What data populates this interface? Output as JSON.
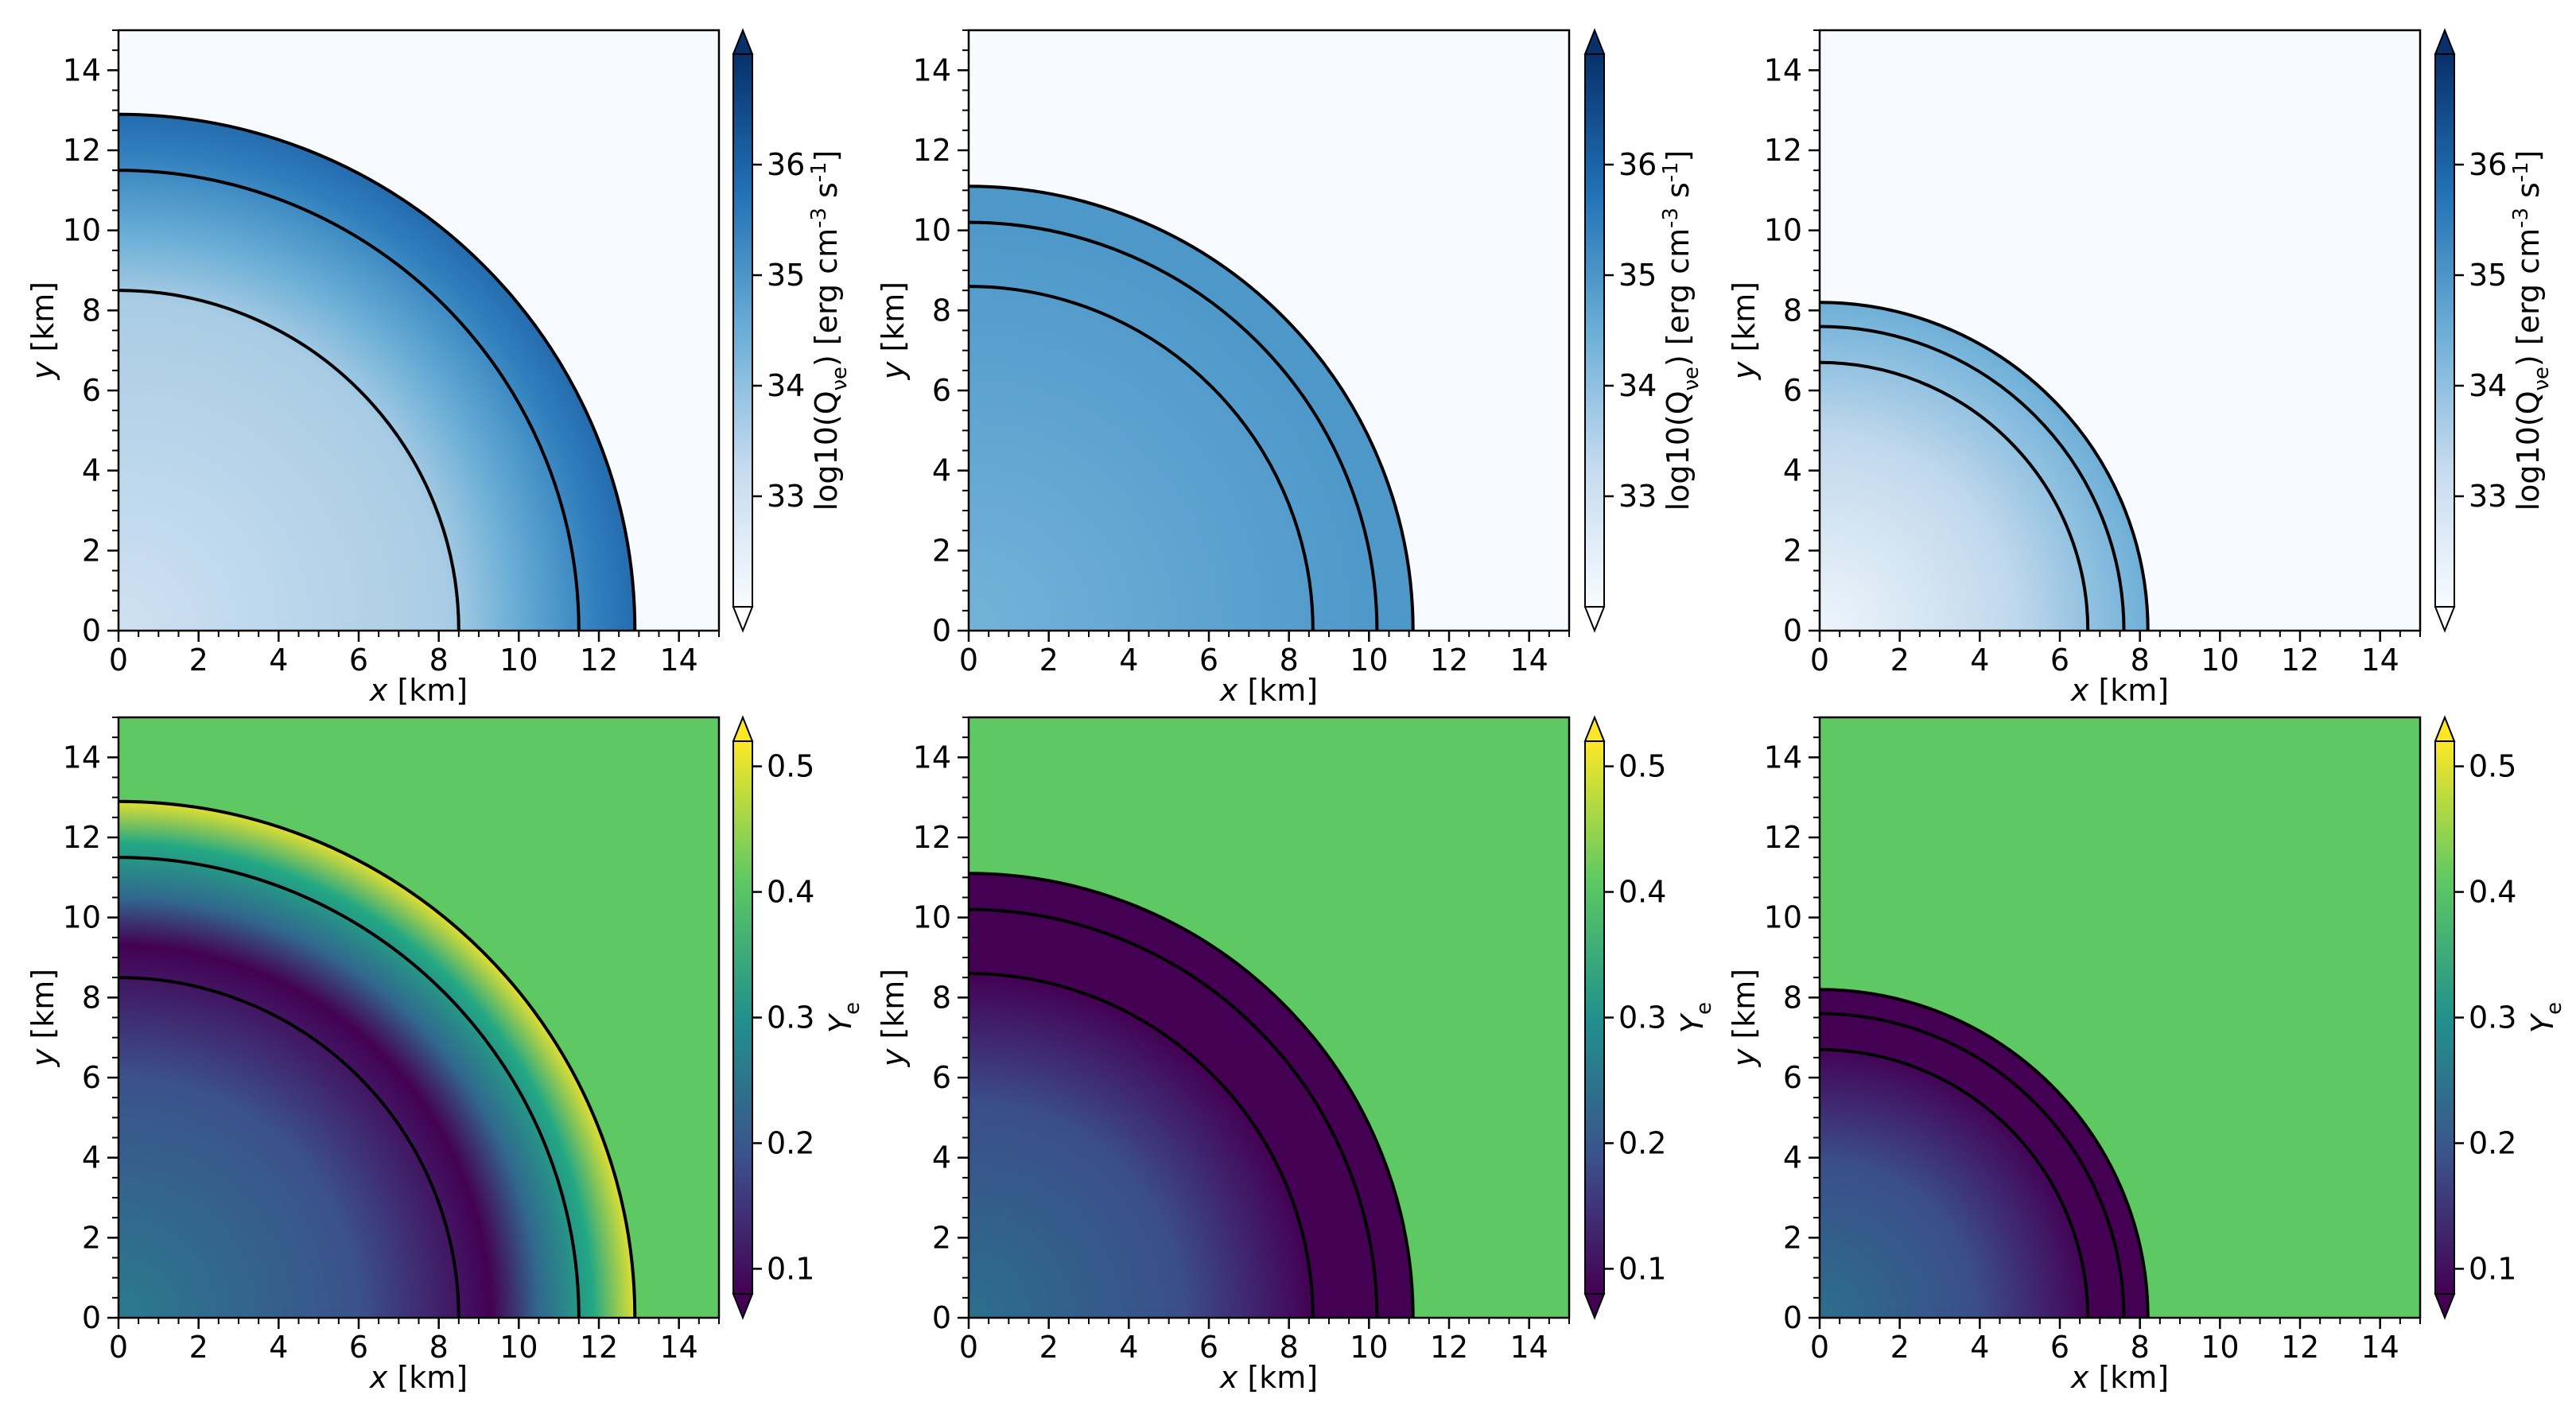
{
  "chart_data": [
    {
      "type": "heatmap",
      "panel": "top-left",
      "quantity": "emission",
      "xlabel": "x [km]",
      "ylabel": "y [km]",
      "xlim": [
        0,
        15
      ],
      "ylim": [
        0,
        15
      ],
      "xticks": [
        0,
        2,
        4,
        6,
        8,
        10,
        12,
        14
      ],
      "yticks": [
        0,
        2,
        4,
        6,
        8,
        10,
        12,
        14
      ],
      "contour_radii_km": [
        8.5,
        11.5,
        12.9
      ],
      "outer_radius_km": 12.9,
      "colormap": "Blues",
      "colorbar": {
        "label": "log10(Q_νe) [erg cm^-3 s^-1]",
        "ticks": [
          33,
          34,
          35,
          36
        ],
        "range": [
          32,
          37
        ],
        "extend": "both"
      }
    },
    {
      "type": "heatmap",
      "panel": "top-middle",
      "quantity": "emission",
      "xlabel": "x [km]",
      "ylabel": "y [km]",
      "xlim": [
        0,
        15
      ],
      "ylim": [
        0,
        15
      ],
      "xticks": [
        0,
        2,
        4,
        6,
        8,
        10,
        12,
        14
      ],
      "yticks": [
        0,
        2,
        4,
        6,
        8,
        10,
        12,
        14
      ],
      "contour_radii_km": [
        8.6,
        10.2,
        11.1
      ],
      "outer_radius_km": 11.1,
      "colormap": "Blues",
      "colorbar": {
        "label": "log10(Q_νe) [erg cm^-3 s^-1]",
        "ticks": [
          33,
          34,
          35,
          36
        ],
        "range": [
          32,
          37
        ],
        "extend": "both"
      }
    },
    {
      "type": "heatmap",
      "panel": "top-right",
      "quantity": "emission",
      "xlabel": "x [km]",
      "ylabel": "y [km]",
      "xlim": [
        0,
        15
      ],
      "ylim": [
        0,
        15
      ],
      "xticks": [
        0,
        2,
        4,
        6,
        8,
        10,
        12,
        14
      ],
      "yticks": [
        0,
        2,
        4,
        6,
        8,
        10,
        12,
        14
      ],
      "contour_radii_km": [
        6.7,
        7.6,
        8.2
      ],
      "outer_radius_km": 8.2,
      "colormap": "Blues",
      "colorbar": {
        "label": "log10(Q_νe) [erg cm^-3 s^-1]",
        "ticks": [
          33,
          34,
          35,
          36
        ],
        "range": [
          32,
          37
        ],
        "extend": "both"
      }
    },
    {
      "type": "heatmap",
      "panel": "bottom-left",
      "quantity": "ye",
      "xlabel": "x [km]",
      "ylabel": "y [km]",
      "xlim": [
        0,
        15
      ],
      "ylim": [
        0,
        15
      ],
      "xticks": [
        0,
        2,
        4,
        6,
        8,
        10,
        12,
        14
      ],
      "yticks": [
        0,
        2,
        4,
        6,
        8,
        10,
        12,
        14
      ],
      "contour_radii_km": [
        8.5,
        11.5,
        12.9
      ],
      "outer_radius_km": 12.9,
      "colormap": "viridis",
      "colorbar": {
        "label": "Y_e",
        "ticks": [
          0.1,
          0.2,
          0.3,
          0.4,
          0.5
        ],
        "range": [
          0.08,
          0.52
        ],
        "extend": "both"
      }
    },
    {
      "type": "heatmap",
      "panel": "bottom-middle",
      "quantity": "ye",
      "xlabel": "x [km]",
      "ylabel": "y [km]",
      "xlim": [
        0,
        15
      ],
      "ylim": [
        0,
        15
      ],
      "xticks": [
        0,
        2,
        4,
        6,
        8,
        10,
        12,
        14
      ],
      "yticks": [
        0,
        2,
        4,
        6,
        8,
        10,
        12,
        14
      ],
      "contour_radii_km": [
        8.6,
        10.2,
        11.1
      ],
      "outer_radius_km": 11.1,
      "colormap": "viridis",
      "colorbar": {
        "label": "Y_e",
        "ticks": [
          0.1,
          0.2,
          0.3,
          0.4,
          0.5
        ],
        "range": [
          0.08,
          0.52
        ],
        "extend": "both"
      }
    },
    {
      "type": "heatmap",
      "panel": "bottom-right",
      "quantity": "ye",
      "xlabel": "x [km]",
      "ylabel": "y [km]",
      "xlim": [
        0,
        15
      ],
      "ylim": [
        0,
        15
      ],
      "xticks": [
        0,
        2,
        4,
        6,
        8,
        10,
        12,
        14
      ],
      "yticks": [
        0,
        2,
        4,
        6,
        8,
        10,
        12,
        14
      ],
      "contour_radii_km": [
        6.7,
        7.6,
        8.2
      ],
      "outer_radius_km": 8.2,
      "colormap": "viridis",
      "colorbar": {
        "label": "Y_e",
        "ticks": [
          0.1,
          0.2,
          0.3,
          0.4,
          0.5
        ],
        "range": [
          0.08,
          0.52
        ],
        "extend": "both"
      }
    }
  ]
}
